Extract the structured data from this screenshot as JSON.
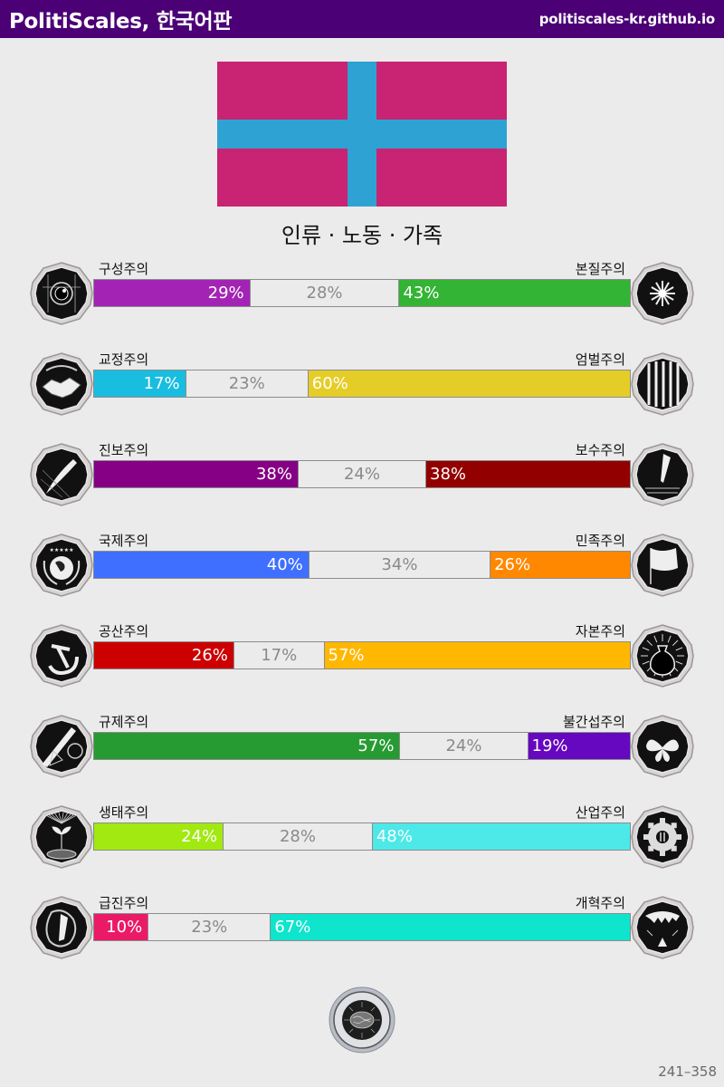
{
  "header": {
    "title": "PolitiScales, 한국어판",
    "site": "politiscales-kr.github.io",
    "background": "#4b0075"
  },
  "flag": {
    "background": "#c92373",
    "cross": "#2fa2d4"
  },
  "ideology": "인류 · 노동 · 가족",
  "axes": [
    {
      "left_label": "구성주의",
      "right_label": "본질주의",
      "left_pct": "29%",
      "center_pct": "28%",
      "right_pct": "43%",
      "left_val": 29,
      "center_val": 28,
      "right_val": 43,
      "left_color": "#a323b5",
      "right_color": "#33b434",
      "left_icon": "eye-icon",
      "right_icon": "flower-icon"
    },
    {
      "left_label": "교정주의",
      "right_label": "엄벌주의",
      "left_pct": "17%",
      "center_pct": "23%",
      "right_pct": "60%",
      "left_val": 17,
      "center_val": 23,
      "right_val": 60,
      "left_color": "#18bde0",
      "right_color": "#e5cd28",
      "left_icon": "handshake-icon",
      "right_icon": "prison-bars-icon"
    },
    {
      "left_label": "진보주의",
      "right_label": "보수주의",
      "left_pct": "38%",
      "center_pct": "24%",
      "right_pct": "38%",
      "left_val": 38,
      "center_val": 24,
      "right_val": 38,
      "left_color": "#850085",
      "right_color": "#930000",
      "left_icon": "rocket-icon",
      "right_icon": "quill-pen-icon"
    },
    {
      "left_label": "국제주의",
      "right_label": "민족주의",
      "left_pct": "40%",
      "center_pct": "34%",
      "right_pct": "26%",
      "left_val": 40,
      "center_val": 34,
      "right_val": 26,
      "left_color": "#3e6fff",
      "right_color": "#ff8800",
      "left_icon": "globe-laurel-icon",
      "right_icon": "flag-icon"
    },
    {
      "left_label": "공산주의",
      "right_label": "자본주의",
      "left_pct": "26%",
      "center_pct": "17%",
      "right_pct": "57%",
      "left_val": 26,
      "center_val": 17,
      "right_val": 57,
      "left_color": "#cc0000",
      "right_color": "#ffb700",
      "left_icon": "hammer-sickle-icon",
      "right_icon": "money-bag-icon"
    },
    {
      "left_label": "규제주의",
      "right_label": "불간섭주의",
      "left_pct": "57%",
      "center_pct": "24%",
      "right_pct": "19%",
      "left_val": 57,
      "center_val": 24,
      "right_val": 19,
      "left_color": "#269b32",
      "right_color": "#6608c0",
      "left_icon": "ruler-tools-icon",
      "right_icon": "butterfly-icon"
    },
    {
      "left_label": "생태주의",
      "right_label": "산업주의",
      "left_pct": "24%",
      "center_pct": "28%",
      "right_pct": "48%",
      "left_val": 24,
      "center_val": 28,
      "right_val": 48,
      "left_color": "#a1e911",
      "right_color": "#4de8e8",
      "left_icon": "sprout-icon",
      "right_icon": "gear-icon"
    },
    {
      "left_label": "급진주의",
      "right_label": "개혁주의",
      "left_pct": "10%",
      "center_pct": "23%",
      "right_pct": "67%",
      "left_val": 10,
      "center_val": 23,
      "right_val": 67,
      "left_color": "#eb1a66",
      "right_color": "#0ee5cc",
      "left_icon": "molotov-icon",
      "right_icon": "tent-icon"
    }
  ],
  "seal_icon": "brain-seal-icon",
  "footer_code": "241–358"
}
